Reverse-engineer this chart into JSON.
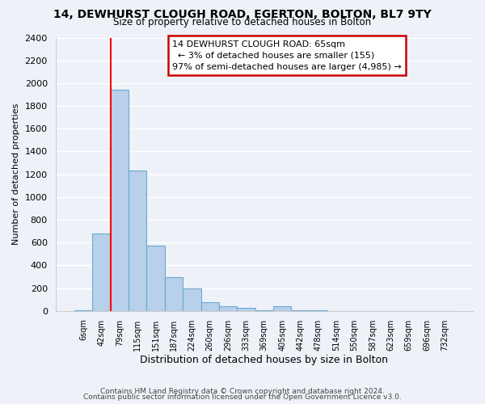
{
  "title": "14, DEWHURST CLOUGH ROAD, EGERTON, BOLTON, BL7 9TY",
  "subtitle": "Size of property relative to detached houses in Bolton",
  "xlabel": "Distribution of detached houses by size in Bolton",
  "ylabel": "Number of detached properties",
  "bar_labels": [
    "6sqm",
    "42sqm",
    "79sqm",
    "115sqm",
    "151sqm",
    "187sqm",
    "224sqm",
    "260sqm",
    "296sqm",
    "333sqm",
    "369sqm",
    "405sqm",
    "442sqm",
    "478sqm",
    "514sqm",
    "550sqm",
    "587sqm",
    "623sqm",
    "659sqm",
    "696sqm",
    "732sqm"
  ],
  "bar_values": [
    5,
    680,
    1940,
    1230,
    575,
    300,
    195,
    80,
    45,
    25,
    5,
    38,
    4,
    4,
    2,
    2,
    1,
    1,
    1,
    1,
    1
  ],
  "bar_color": "#b8d0ea",
  "bar_edge_color": "#6aaad4",
  "red_line_x": 1.5,
  "ylim": [
    0,
    2400
  ],
  "yticks": [
    0,
    200,
    400,
    600,
    800,
    1000,
    1200,
    1400,
    1600,
    1800,
    2000,
    2200,
    2400
  ],
  "annotation_title": "14 DEWHURST CLOUGH ROAD: 65sqm",
  "annotation_line1": "← 3% of detached houses are smaller (155)",
  "annotation_line2": "97% of semi-detached houses are larger (4,985) →",
  "annotation_box_color": "#ffffff",
  "annotation_box_edge": "#cc0000",
  "footer1": "Contains HM Land Registry data © Crown copyright and database right 2024.",
  "footer2": "Contains public sector information licensed under the Open Government Licence v3.0.",
  "background_color": "#eef2f8",
  "plot_bg_color": "#eef2f8",
  "grid_color": "#ffffff"
}
